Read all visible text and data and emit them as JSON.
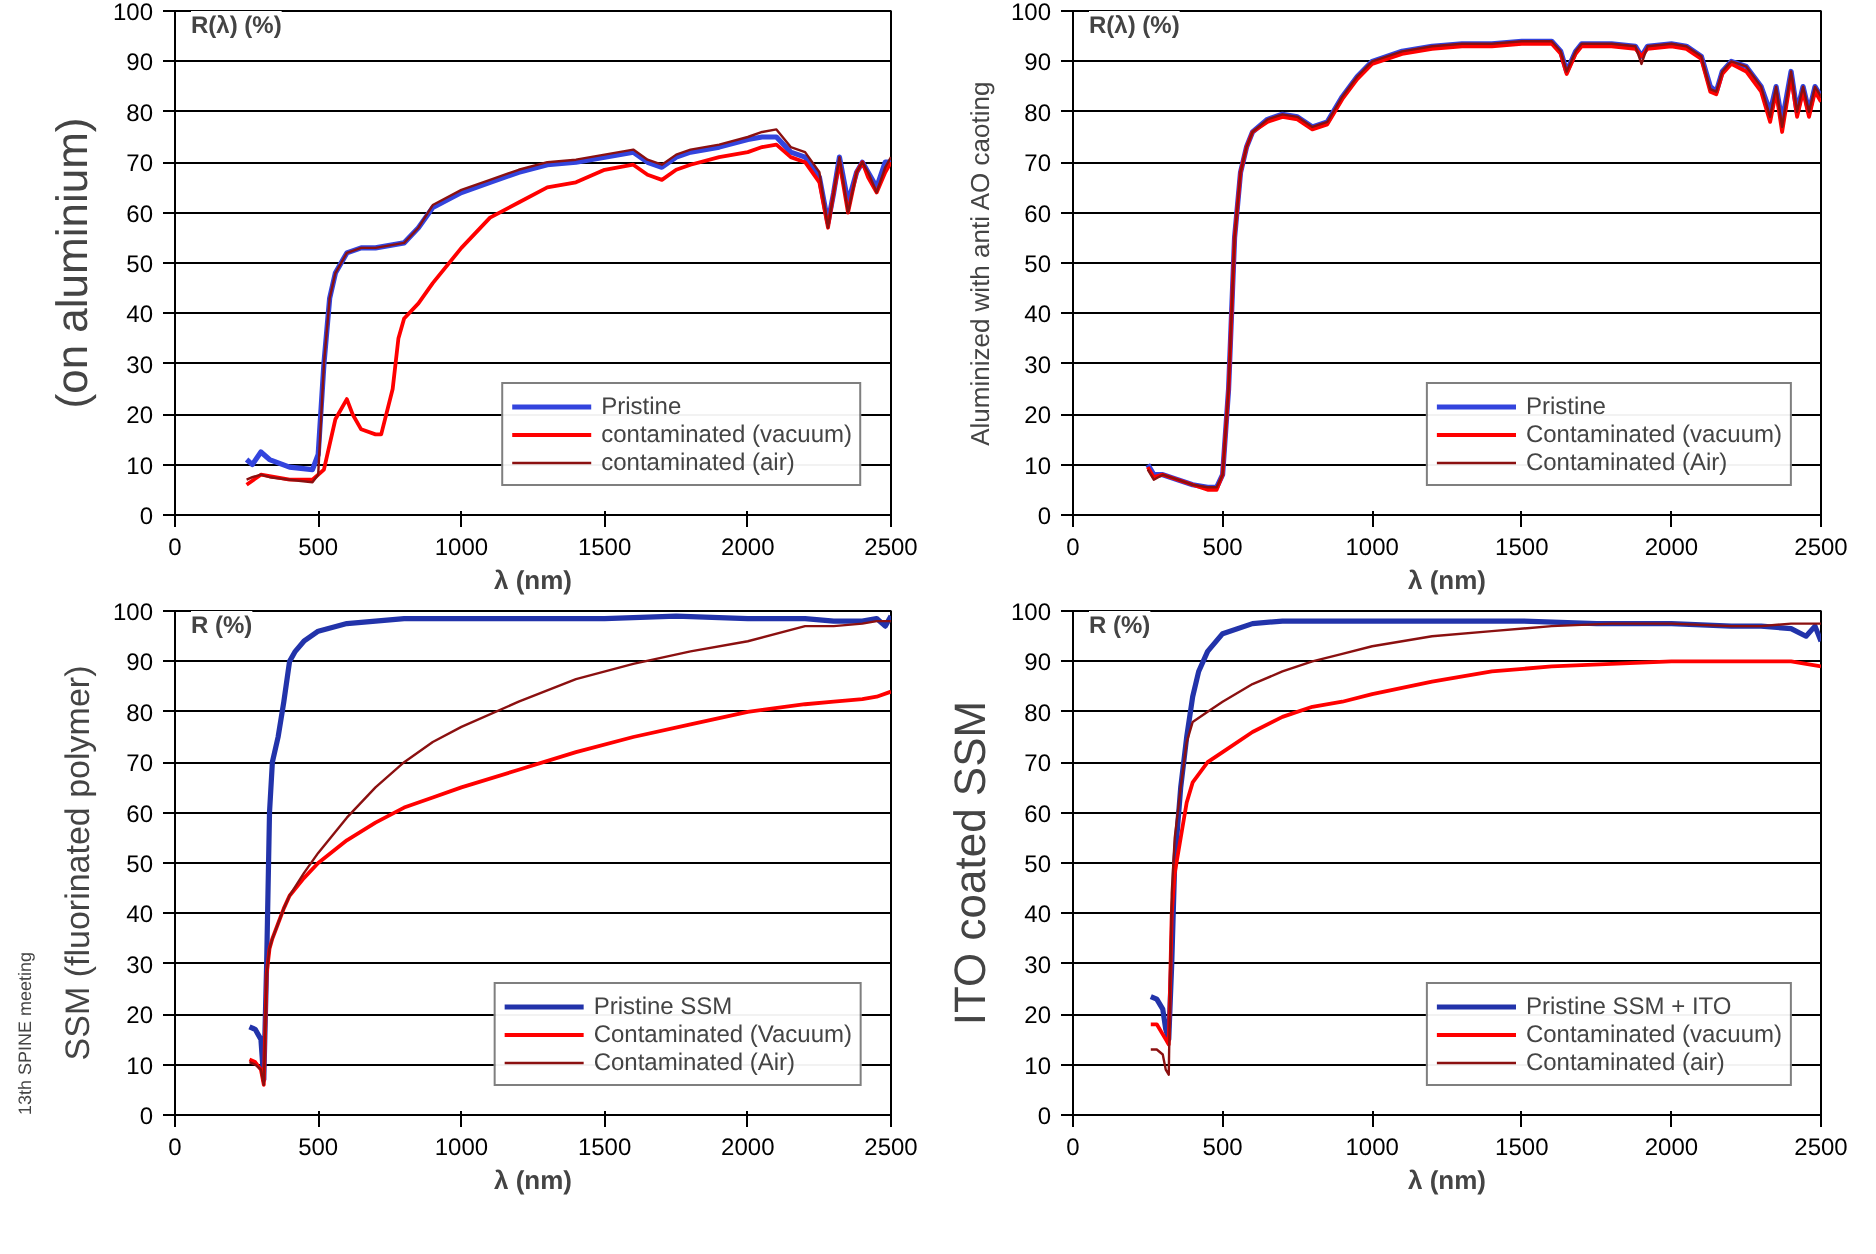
{
  "chart_data": [
    {
      "type": "line",
      "title": "(on aluminium)",
      "ylabel": "R(λ) (%)",
      "xlabel": "λ (nm)",
      "xlim": [
        0,
        2500
      ],
      "xticks": [
        0,
        500,
        1000,
        1500,
        2000,
        2500
      ],
      "ylim": [
        0,
        100
      ],
      "yticks": [
        0,
        10,
        20,
        30,
        40,
        50,
        60,
        70,
        80,
        90,
        100
      ],
      "grid": "y",
      "legend": "bottom right",
      "line_style": "solid",
      "series": [
        {
          "name": "Pristine",
          "color": "#3344dd",
          "x": [
            250,
            270,
            300,
            330,
            400,
            480,
            500,
            520,
            540,
            560,
            600,
            650,
            700,
            800,
            850,
            900,
            1000,
            1100,
            1200,
            1300,
            1400,
            1500,
            1600,
            1650,
            1700,
            1750,
            1800,
            1900,
            2000,
            2050,
            2100,
            2150,
            2200,
            2250,
            2280,
            2300,
            2320,
            2350,
            2380,
            2400,
            2420,
            2450,
            2480,
            2500
          ],
          "values": [
            11,
            10,
            12.5,
            11,
            9.5,
            9,
            12,
            30,
            43,
            48,
            52,
            53,
            53,
            54,
            57,
            61,
            64,
            66,
            68,
            69.5,
            70,
            71,
            72,
            70,
            69,
            71,
            72,
            73,
            74.5,
            75,
            75,
            72,
            71,
            67,
            58,
            64,
            71,
            62,
            68,
            70,
            68,
            65,
            70,
            70
          ]
        },
        {
          "name": "contaminated (vacuum)",
          "color": "#ff0000",
          "x": [
            250,
            300,
            400,
            480,
            520,
            560,
            600,
            620,
            650,
            700,
            720,
            760,
            780,
            800,
            850,
            900,
            1000,
            1100,
            1200,
            1300,
            1400,
            1500,
            1600,
            1650,
            1700,
            1750,
            1800,
            1900,
            2000,
            2050,
            2100,
            2150,
            2200,
            2250,
            2280,
            2300,
            2320,
            2350,
            2380,
            2400,
            2420,
            2450,
            2480,
            2500
          ],
          "values": [
            6,
            8,
            7,
            7,
            9,
            19,
            23,
            20,
            17,
            16,
            16,
            25,
            35,
            39,
            42,
            46,
            53,
            59,
            62,
            65,
            66,
            68.5,
            69.5,
            67.5,
            66.5,
            68.5,
            69.5,
            71,
            72,
            73,
            73.5,
            71,
            70,
            66,
            57,
            64,
            70,
            60,
            68,
            70,
            67,
            64,
            68,
            70
          ]
        },
        {
          "name": "contaminated (air)",
          "color": "#8b1010",
          "x": [
            250,
            270,
            300,
            330,
            400,
            480,
            500,
            520,
            540,
            560,
            600,
            650,
            700,
            800,
            850,
            900,
            1000,
            1100,
            1200,
            1300,
            1400,
            1500,
            1600,
            1650,
            1700,
            1750,
            1800,
            1900,
            2000,
            2050,
            2100,
            2150,
            2200,
            2250,
            2280,
            2300,
            2320,
            2350,
            2380,
            2400,
            2420,
            2450,
            2480,
            2500
          ],
          "values": [
            7,
            7.5,
            8,
            7.5,
            7,
            6.5,
            8,
            30,
            43,
            48,
            52,
            53,
            53,
            54,
            57,
            61.5,
            64.5,
            66.5,
            68.5,
            70,
            70.5,
            71.5,
            72.5,
            70.5,
            69.5,
            71.5,
            72.5,
            73.5,
            75,
            76,
            76.5,
            73,
            72,
            68,
            57,
            64,
            71,
            60,
            68,
            70,
            68,
            64,
            69,
            71
          ]
        }
      ]
    },
    {
      "type": "line",
      "title": "Aluminized with anti AO caoting",
      "ylabel": "R(λ) (%)",
      "xlabel": "λ (nm)",
      "xlim": [
        0,
        2500
      ],
      "xticks": [
        0,
        500,
        1000,
        1500,
        2000,
        2500
      ],
      "ylim": [
        0,
        100
      ],
      "yticks": [
        0,
        10,
        20,
        30,
        40,
        50,
        60,
        70,
        80,
        90,
        100
      ],
      "grid": "y",
      "legend": "bottom right",
      "line_style": "solid",
      "series": [
        {
          "name": "Pristine",
          "color": "#3344dd",
          "x": [
            250,
            270,
            300,
            350,
            400,
            450,
            480,
            500,
            520,
            540,
            560,
            580,
            600,
            650,
            700,
            750,
            800,
            850,
            900,
            950,
            1000,
            1100,
            1200,
            1300,
            1400,
            1500,
            1600,
            1630,
            1650,
            1680,
            1700,
            1800,
            1880,
            1900,
            1920,
            2000,
            2050,
            2100,
            2130,
            2150,
            2170,
            2200,
            2250,
            2300,
            2330,
            2350,
            2370,
            2400,
            2420,
            2440,
            2460,
            2480,
            2500
          ],
          "values": [
            10,
            8,
            8,
            7,
            6,
            5.5,
            5.5,
            8,
            25,
            55,
            68,
            73,
            76,
            78.5,
            79.5,
            79,
            77,
            78,
            83,
            87,
            90,
            92,
            93,
            93.5,
            93.5,
            94,
            94,
            92,
            88,
            92,
            93.5,
            93.5,
            93,
            91,
            93,
            93.5,
            93,
            91,
            85,
            84,
            88,
            90,
            89,
            85,
            80,
            85,
            78,
            88,
            80,
            85,
            80,
            85,
            83
          ]
        },
        {
          "name": "Contaminated (vacuum)",
          "color": "#ff0000",
          "x": [
            250,
            270,
            300,
            350,
            400,
            450,
            480,
            500,
            520,
            540,
            560,
            580,
            600,
            650,
            700,
            750,
            800,
            850,
            900,
            950,
            1000,
            1100,
            1200,
            1300,
            1400,
            1500,
            1600,
            1630,
            1650,
            1680,
            1700,
            1800,
            1880,
            1900,
            1920,
            2000,
            2050,
            2100,
            2130,
            2150,
            2170,
            2200,
            2250,
            2300,
            2330,
            2350,
            2370,
            2400,
            2420,
            2440,
            2460,
            2480,
            2500
          ],
          "values": [
            9.5,
            7.5,
            8,
            7,
            6,
            5,
            5,
            8,
            25,
            55,
            68,
            73,
            76,
            78,
            79,
            78.5,
            76.5,
            77.5,
            82.5,
            86.5,
            89.5,
            91.5,
            92.5,
            93,
            93,
            93.5,
            93.5,
            91.5,
            87.5,
            91.5,
            93,
            93,
            92.5,
            91,
            92.5,
            93,
            92.5,
            90.5,
            84,
            83.5,
            87.5,
            89.5,
            88,
            84,
            78,
            84,
            76,
            87,
            79,
            84,
            79,
            84,
            82
          ]
        },
        {
          "name": "Contaminated (Air)",
          "color": "#8b1010",
          "x": [
            250,
            270,
            300,
            350,
            400,
            450,
            480,
            500,
            520,
            540,
            560,
            580,
            600,
            650,
            700,
            750,
            800,
            850,
            900,
            950,
            1000,
            1100,
            1200,
            1300,
            1400,
            1500,
            1600,
            1630,
            1650,
            1680,
            1700,
            1800,
            1880,
            1900,
            1920,
            2000,
            2050,
            2100,
            2130,
            2150,
            2170,
            2200,
            2250,
            2300,
            2330,
            2350,
            2370,
            2400,
            2420,
            2440,
            2460,
            2480,
            2500
          ],
          "values": [
            9,
            7,
            8,
            7,
            6,
            5.5,
            5.5,
            8,
            25,
            55,
            68,
            73,
            76,
            78.5,
            79.5,
            79,
            77,
            78,
            83,
            87,
            90,
            92,
            93,
            93.5,
            93.5,
            94,
            94,
            92,
            88,
            92,
            93.5,
            93.5,
            93,
            89.5,
            93,
            93.5,
            93,
            91,
            84.5,
            84,
            88,
            90,
            89,
            85,
            79,
            85,
            77,
            88,
            80,
            85,
            80,
            85,
            83
          ]
        }
      ]
    },
    {
      "type": "line",
      "title": "SSM (fluorinated polymer)",
      "ylabel": "R (%)",
      "xlabel": "λ (nm)",
      "annotations": [
        "13th SPINE meeting"
      ],
      "xlim": [
        0,
        2500
      ],
      "xticks": [
        0,
        500,
        1000,
        1500,
        2000,
        2500
      ],
      "ylim": [
        0,
        100
      ],
      "yticks": [
        0,
        10,
        20,
        30,
        40,
        50,
        60,
        70,
        80,
        90,
        100
      ],
      "grid": "y",
      "legend": "bottom right",
      "line_style": "solid",
      "series": [
        {
          "name": "Pristine SSM",
          "color": "#2233aa",
          "x": [
            260,
            280,
            300,
            310,
            320,
            330,
            340,
            360,
            380,
            400,
            420,
            450,
            500,
            600,
            700,
            800,
            1000,
            1200,
            1500,
            1750,
            2000,
            2200,
            2300,
            2400,
            2450,
            2480,
            2500
          ],
          "values": [
            17.5,
            17,
            15,
            7,
            30,
            60,
            70,
            75,
            82,
            90,
            92,
            94,
            96,
            97.5,
            98,
            98.5,
            98.5,
            98.5,
            98.5,
            99,
            98.5,
            98.5,
            98,
            98,
            98.5,
            97,
            99
          ]
        },
        {
          "name": "Contaminated (Vacuum)",
          "color": "#ff0000",
          "x": [
            260,
            280,
            300,
            310,
            320,
            330,
            340,
            360,
            380,
            400,
            450,
            500,
            600,
            700,
            800,
            900,
            1000,
            1200,
            1400,
            1600,
            1800,
            2000,
            2200,
            2300,
            2400,
            2450,
            2500
          ],
          "values": [
            11,
            10.5,
            9,
            6,
            28,
            33,
            35,
            38,
            41,
            43.5,
            47,
            50,
            54.5,
            58,
            61,
            63,
            65,
            68.5,
            72,
            75,
            77.5,
            80,
            81.5,
            82,
            82.5,
            83,
            84
          ]
        },
        {
          "name": "Contaminated (Air)",
          "color": "#8b1010",
          "x": [
            260,
            280,
            300,
            310,
            320,
            330,
            340,
            360,
            380,
            400,
            450,
            500,
            600,
            700,
            800,
            900,
            1000,
            1200,
            1400,
            1600,
            1800,
            2000,
            2200,
            2300,
            2400,
            2450,
            2500
          ],
          "values": [
            10.5,
            10,
            9,
            6,
            28,
            33,
            35,
            38,
            41,
            43.5,
            48,
            52,
            59,
            65,
            70,
            74,
            77,
            82,
            86.5,
            89.5,
            92,
            94,
            97,
            97,
            97.5,
            98,
            98
          ]
        }
      ]
    },
    {
      "type": "line",
      "title": "ITO coated SSM",
      "ylabel": "R (%)",
      "xlabel": "λ (nm)",
      "xlim": [
        0,
        2500
      ],
      "xticks": [
        0,
        500,
        1000,
        1500,
        2000,
        2500
      ],
      "ylim": [
        0,
        100
      ],
      "yticks": [
        0,
        10,
        20,
        30,
        40,
        50,
        60,
        70,
        80,
        90,
        100
      ],
      "grid": "y",
      "legend": "bottom right",
      "line_style": "solid",
      "series": [
        {
          "name": "Pristine SSM + ITO",
          "color": "#2233aa",
          "x": [
            260,
            280,
            300,
            310,
            320,
            330,
            340,
            360,
            380,
            400,
            420,
            450,
            500,
            600,
            700,
            800,
            1000,
            1200,
            1500,
            1750,
            2000,
            2200,
            2300,
            2400,
            2450,
            2480,
            2500
          ],
          "values": [
            23.5,
            23,
            21,
            17,
            15,
            30,
            50,
            65,
            75,
            83,
            88,
            92,
            95.5,
            97.5,
            98,
            98,
            98,
            98,
            98,
            97.5,
            97.5,
            97,
            97,
            96.5,
            95,
            97,
            94
          ]
        },
        {
          "name": "Contaminated (vacuum)",
          "color": "#ff0000",
          "x": [
            260,
            280,
            300,
            310,
            320,
            330,
            340,
            360,
            380,
            400,
            450,
            500,
            600,
            700,
            800,
            900,
            1000,
            1200,
            1400,
            1600,
            1800,
            2000,
            2200,
            2300,
            2400,
            2450,
            2500
          ],
          "values": [
            18,
            18,
            16,
            15,
            14,
            40,
            48,
            55,
            62,
            66,
            70,
            72,
            76,
            79,
            81,
            82,
            83.5,
            86,
            88,
            89,
            89.5,
            90,
            90,
            90,
            90,
            89.5,
            89
          ]
        },
        {
          "name": "Contaminated (air)",
          "color": "#8b1010",
          "x": [
            260,
            280,
            300,
            310,
            320,
            330,
            340,
            360,
            380,
            400,
            450,
            500,
            600,
            700,
            800,
            900,
            1000,
            1200,
            1400,
            1600,
            1800,
            2000,
            2200,
            2300,
            2400,
            2450,
            2500
          ],
          "values": [
            13,
            13,
            12,
            9,
            8,
            44,
            55,
            65,
            74,
            78,
            80,
            82,
            85.5,
            88,
            90,
            91.5,
            93,
            95,
            96,
            97,
            97.5,
            97.5,
            97,
            97,
            97.5,
            97.5,
            97.5
          ]
        }
      ]
    }
  ]
}
